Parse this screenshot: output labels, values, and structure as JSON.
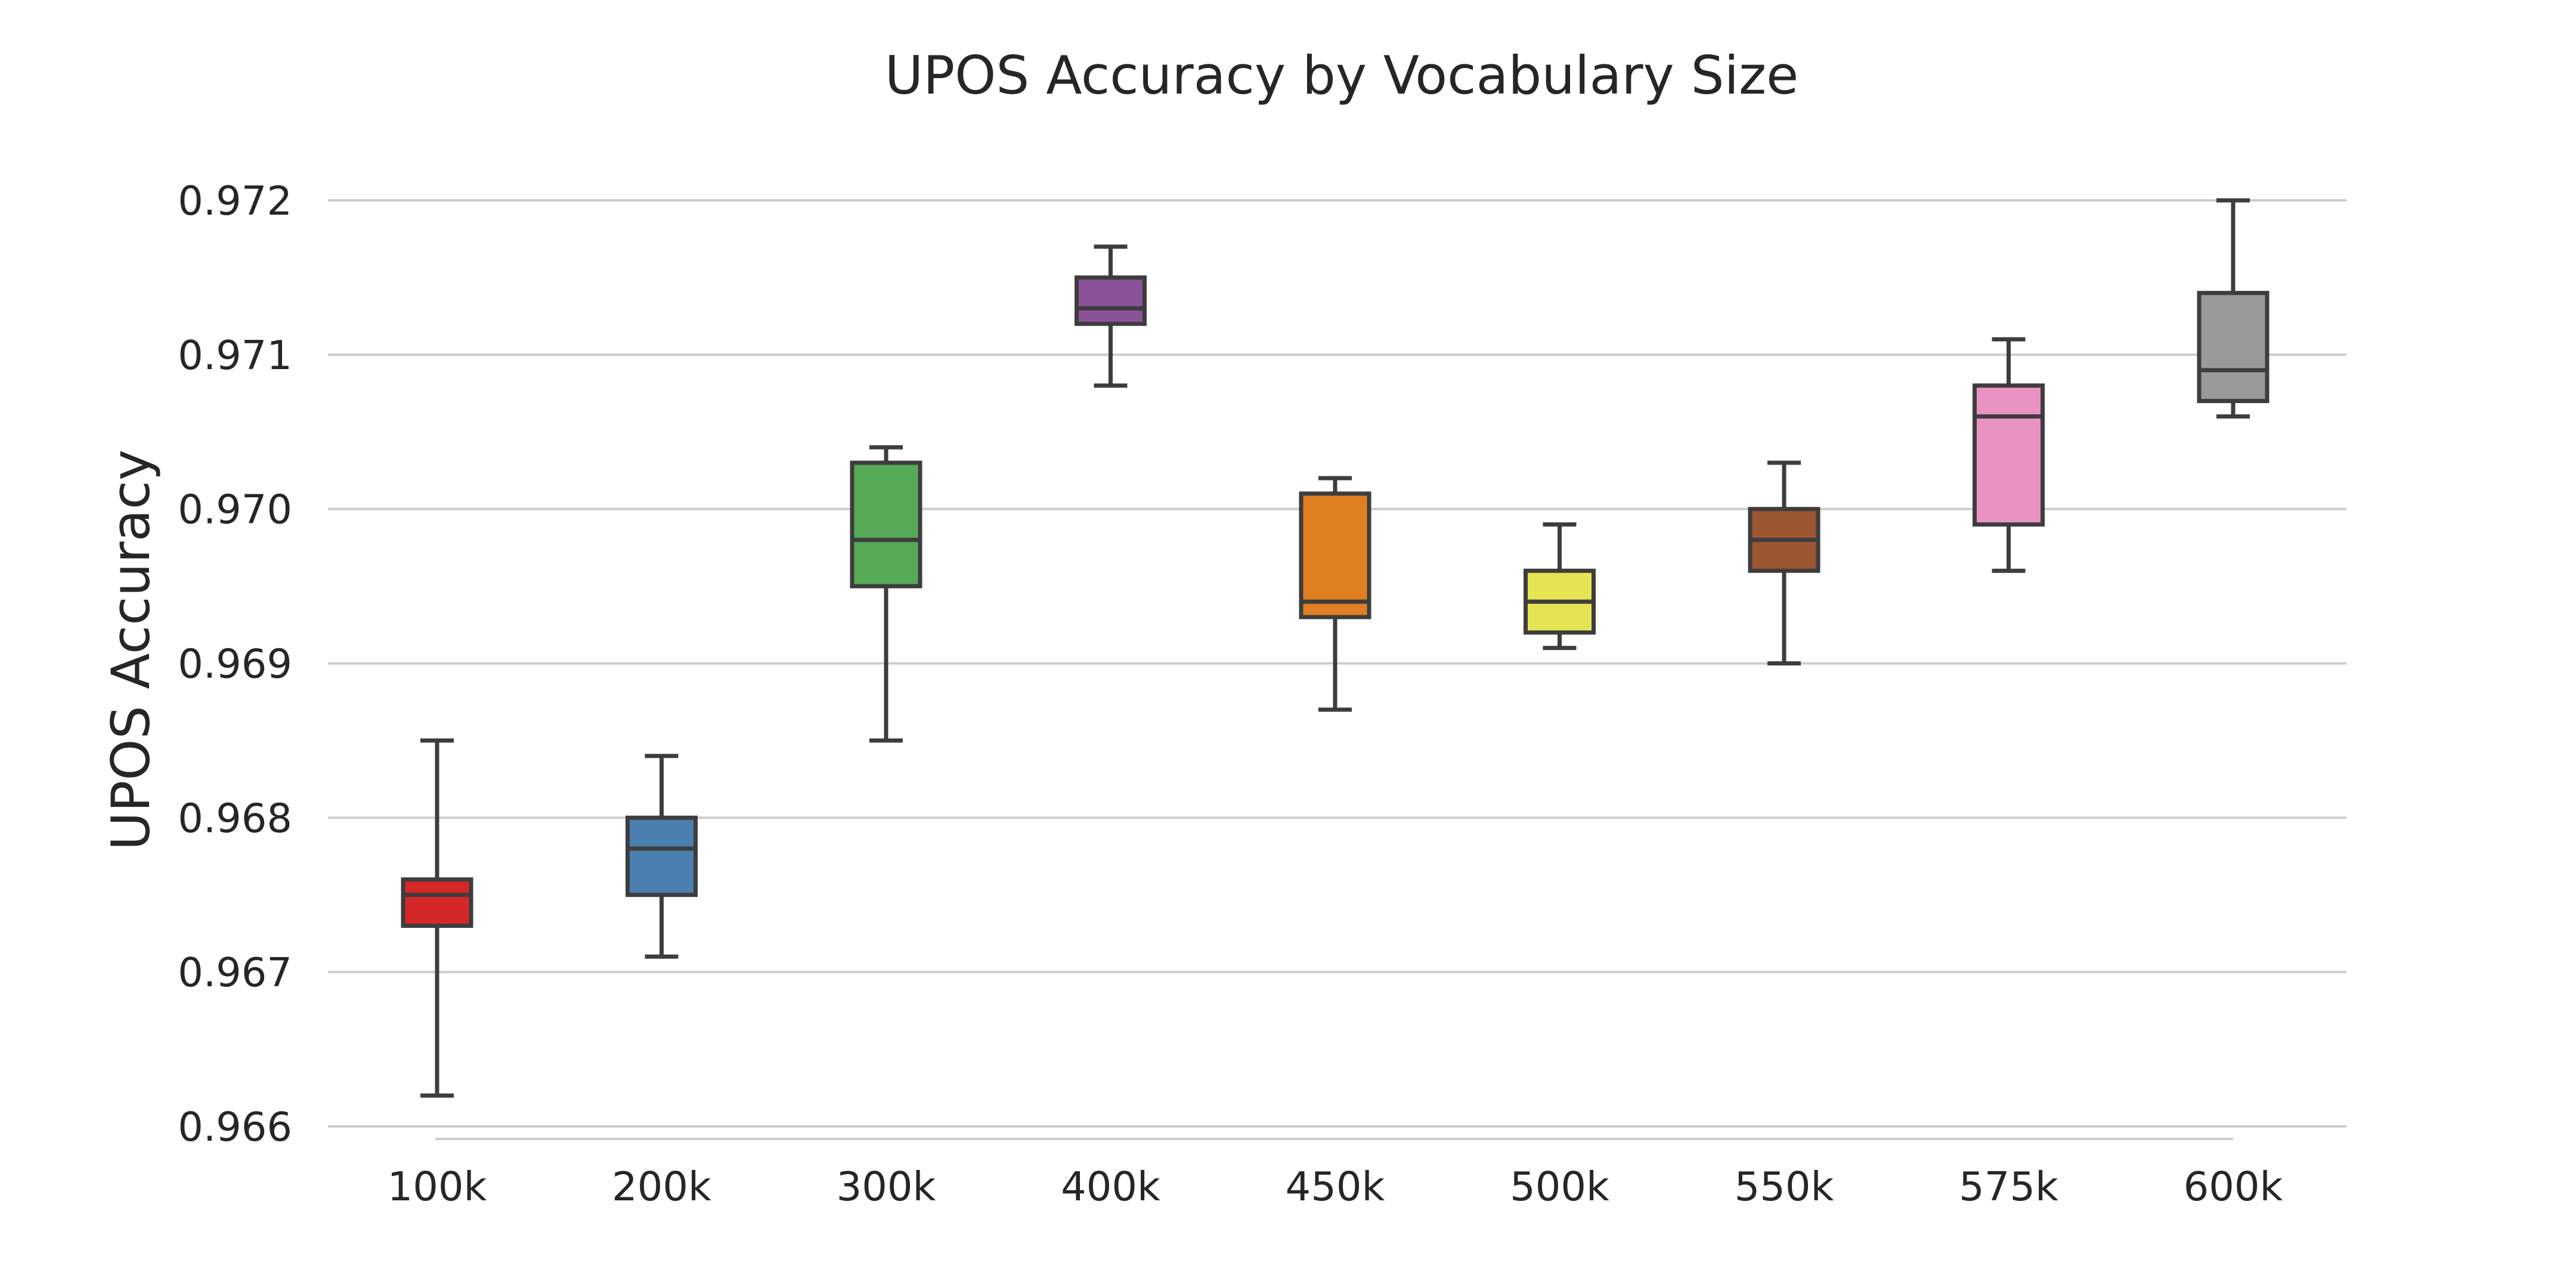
{
  "chart_data": {
    "type": "box",
    "title": "UPOS Accuracy by Vocabulary Size",
    "xlabel": "",
    "ylabel": "UPOS Accuracy",
    "ylim": [
      0.966,
      0.972
    ],
    "yticks": [
      "0.966",
      "0.967",
      "0.968",
      "0.969",
      "0.970",
      "0.971",
      "0.972"
    ],
    "grid": "horizontal",
    "categories": [
      "100k",
      "200k",
      "300k",
      "400k",
      "450k",
      "500k",
      "550k",
      "575k",
      "600k"
    ],
    "boxes": [
      {
        "category": "100k",
        "min": 0.9662,
        "q1": 0.9673,
        "median": 0.9675,
        "q3": 0.9676,
        "max": 0.9685,
        "color": "#d62728"
      },
      {
        "category": "200k",
        "min": 0.9671,
        "q1": 0.9675,
        "median": 0.9678,
        "q3": 0.968,
        "max": 0.9684,
        "color": "#4a7fb0"
      },
      {
        "category": "300k",
        "min": 0.9685,
        "q1": 0.9695,
        "median": 0.9698,
        "q3": 0.9703,
        "max": 0.9704,
        "color": "#56a957"
      },
      {
        "category": "400k",
        "min": 0.9708,
        "q1": 0.9712,
        "median": 0.9713,
        "q3": 0.9715,
        "max": 0.9717,
        "color": "#8b529a"
      },
      {
        "category": "450k",
        "min": 0.9687,
        "q1": 0.9693,
        "median": 0.9694,
        "q3": 0.9701,
        "max": 0.9702,
        "color": "#e07e22"
      },
      {
        "category": "500k",
        "min": 0.9691,
        "q1": 0.9692,
        "median": 0.9694,
        "q3": 0.9696,
        "max": 0.9699,
        "color": "#e5e553"
      },
      {
        "category": "550k",
        "min": 0.969,
        "q1": 0.9696,
        "median": 0.9698,
        "q3": 0.97,
        "max": 0.9703,
        "color": "#9c5632"
      },
      {
        "category": "575k",
        "min": 0.9696,
        "q1": 0.9699,
        "median": 0.9706,
        "q3": 0.9708,
        "max": 0.9711,
        "color": "#ea92c2"
      },
      {
        "category": "600k",
        "min": 0.9706,
        "q1": 0.9707,
        "median": 0.9709,
        "q3": 0.9714,
        "max": 0.972,
        "color": "#999999"
      }
    ]
  },
  "colors": {
    "text": "#262626",
    "grid": "#cccccc",
    "box_outline": "#3d3d3d"
  }
}
